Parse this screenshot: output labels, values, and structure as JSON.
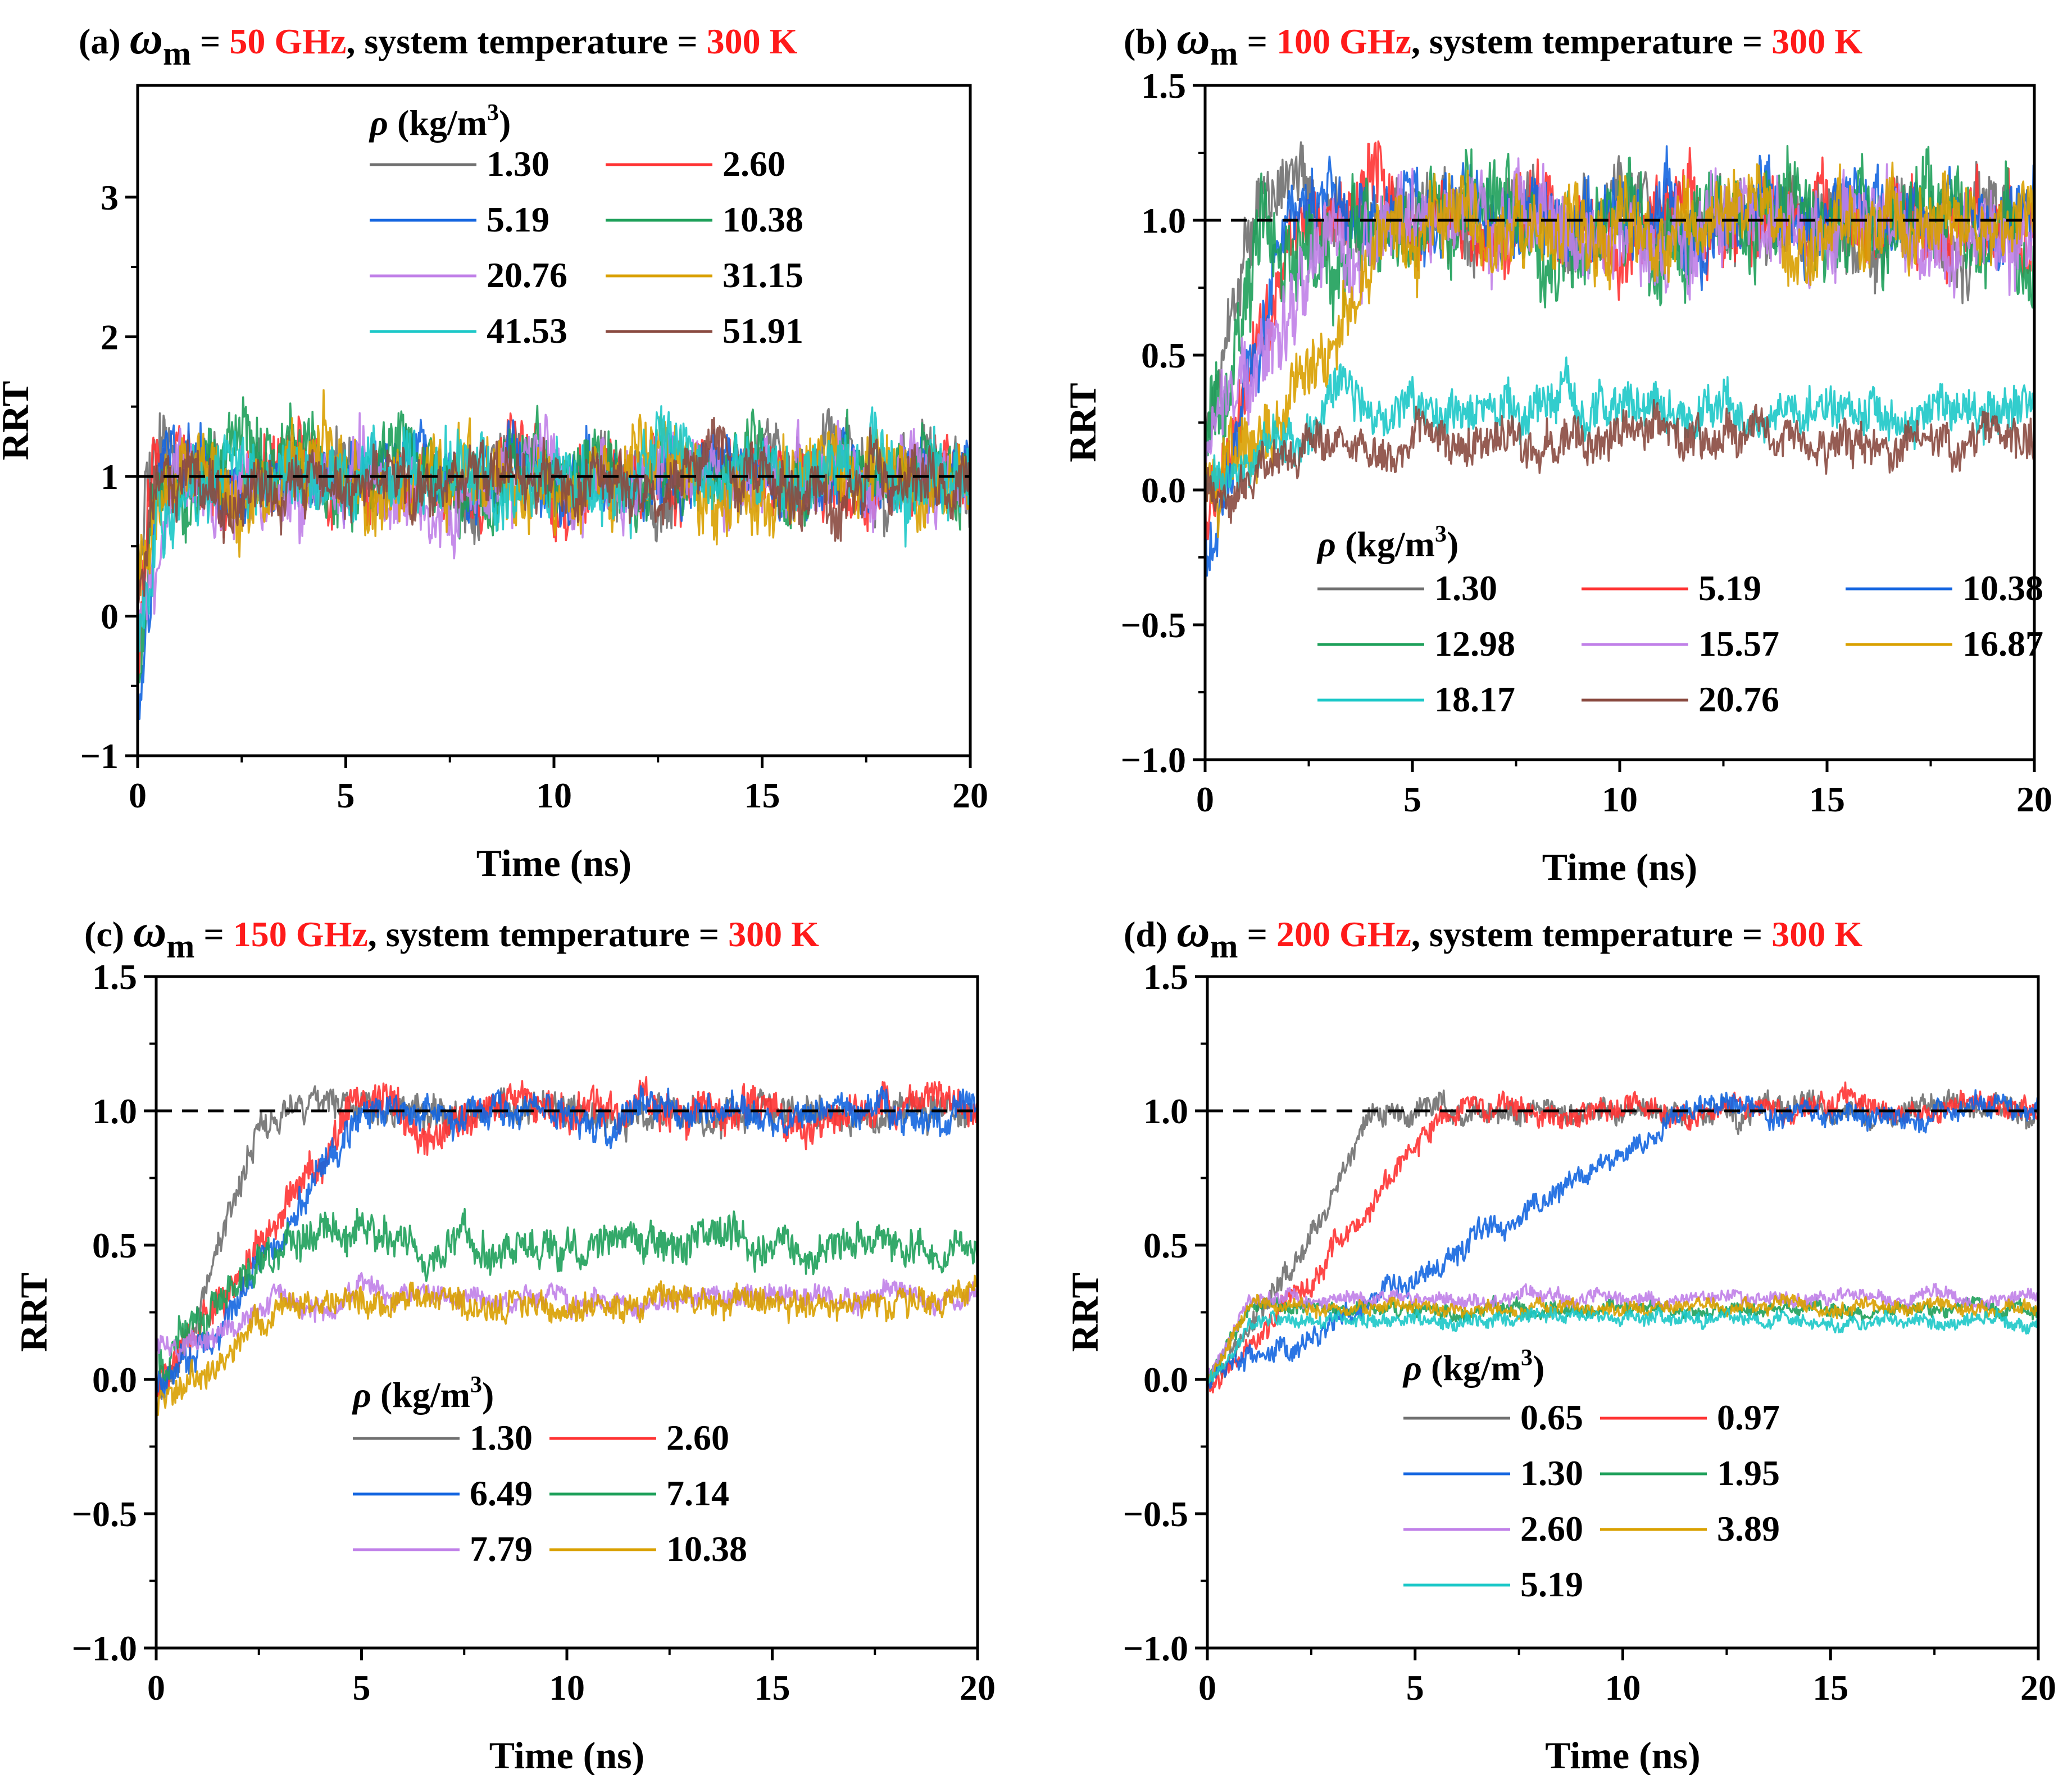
{
  "chart_data": [
    {
      "panel": "a",
      "type": "line",
      "title": {
        "prefix": "(a) ",
        "symbol": "ω",
        "sub": "m",
        "eq": " = ",
        "freq": "50 GHz",
        "mid": ", system temperature = ",
        "temp": "300 K"
      },
      "xlabel": "Time (ns)",
      "ylabel": "RRT",
      "xlim": [
        0,
        20
      ],
      "ylim": [
        -1,
        3.8
      ],
      "xticks": [
        0,
        5,
        10,
        15,
        20
      ],
      "xtick_labels": [
        "0",
        "5",
        "10",
        "15",
        "20"
      ],
      "yticks": [
        -1,
        0,
        1,
        2,
        3
      ],
      "ytick_labels": [
        "−1",
        "0",
        "1",
        "2",
        "3"
      ],
      "reference_line": 1.0,
      "legend": {
        "title_symbol": "ρ",
        "title_rest": " (kg/m",
        "title_sup": "3",
        "title_end": ")",
        "columns": 2,
        "placement": "top-center"
      },
      "series": [
        {
          "name": "1.30",
          "color": "#707070",
          "ramp_end": 0.25,
          "start": 0.2,
          "plateau": 1.0,
          "amp": 0.28
        },
        {
          "name": "2.60",
          "color": "#ff3333",
          "ramp_end": 0.3,
          "start": -0.4,
          "plateau": 1.0,
          "amp": 0.28
        },
        {
          "name": "5.19",
          "color": "#1466e0",
          "ramp_end": 0.6,
          "start": -0.7,
          "plateau": 1.0,
          "amp": 0.28
        },
        {
          "name": "10.38",
          "color": "#1ea05a",
          "ramp_end": 0.4,
          "start": -0.5,
          "plateau": 1.0,
          "amp": 0.3
        },
        {
          "name": "20.76",
          "color": "#c080e8",
          "ramp_end": 0.8,
          "start": -0.2,
          "plateau": 0.98,
          "amp": 0.3
        },
        {
          "name": "31.15",
          "color": "#d9a000",
          "ramp_end": 0.5,
          "start": 0.3,
          "plateau": 0.98,
          "amp": 0.32
        },
        {
          "name": "41.53",
          "color": "#1cc8c8",
          "ramp_end": 0.5,
          "start": -0.2,
          "plateau": 1.0,
          "amp": 0.3
        },
        {
          "name": "51.91",
          "color": "#8a4a40",
          "ramp_end": 0.4,
          "start": 0.2,
          "plateau": 0.95,
          "amp": 0.25
        }
      ]
    },
    {
      "panel": "b",
      "type": "line",
      "title": {
        "prefix": "(b) ",
        "symbol": "ω",
        "sub": "m",
        "eq": " = ",
        "freq": "100 GHz",
        "mid": ", system temperature = ",
        "temp": "300 K"
      },
      "xlabel": "Time (ns)",
      "ylabel": "RRT",
      "xlim": [
        0,
        20
      ],
      "ylim": [
        -1.0,
        1.5
      ],
      "xticks": [
        0,
        5,
        10,
        15,
        20
      ],
      "xtick_labels": [
        "0",
        "5",
        "10",
        "15",
        "20"
      ],
      "yticks": [
        -1.0,
        -0.5,
        0.0,
        0.5,
        1.0,
        1.5
      ],
      "ytick_labels": [
        "−1.0",
        "−0.5",
        "0.0",
        "0.5",
        "1.0",
        "1.5"
      ],
      "reference_line": 1.0,
      "legend": {
        "title_symbol": "ρ",
        "title_rest": " (kg/m",
        "title_sup": "3",
        "title_end": ")",
        "columns": 3,
        "placement": "bottom-left"
      },
      "series": [
        {
          "name": "1.30",
          "color": "#707070",
          "ramp_end": 1.2,
          "start": 0.2,
          "plateau": 1.0,
          "amp": 0.16
        },
        {
          "name": "5.19",
          "color": "#ff3333",
          "ramp_end": 2.2,
          "start": -0.1,
          "plateau": 1.0,
          "amp": 0.16
        },
        {
          "name": "10.38",
          "color": "#1466e0",
          "ramp_end": 2.0,
          "start": -0.25,
          "plateau": 1.0,
          "amp": 0.16
        },
        {
          "name": "12.98",
          "color": "#1ea05a",
          "ramp_end": 1.3,
          "start": 0.2,
          "plateau": 0.95,
          "amp": 0.2
        },
        {
          "name": "15.57",
          "color": "#c080e8",
          "ramp_end": 3.0,
          "start": 0.2,
          "plateau": 0.95,
          "amp": 0.18
        },
        {
          "name": "16.87",
          "color": "#d9a000",
          "ramp_end": 4.6,
          "start": -0.05,
          "plateau": 1.0,
          "amp": 0.16
        },
        {
          "name": "18.17",
          "color": "#1cc8c8",
          "ramp_end": 3.0,
          "start": 0.0,
          "plateau": 0.3,
          "amp": 0.1
        },
        {
          "name": "20.76",
          "color": "#8a4a40",
          "ramp_end": 3.0,
          "start": 0.0,
          "plateau": 0.18,
          "amp": 0.09
        }
      ]
    },
    {
      "panel": "c",
      "type": "line",
      "title": {
        "prefix": "(c) ",
        "symbol": "ω",
        "sub": "m",
        "eq": " = ",
        "freq": "150 GHz",
        "mid": ", system temperature = ",
        "temp": "300 K"
      },
      "xlabel": "Time (ns)",
      "ylabel": "RRT",
      "xlim": [
        0,
        20
      ],
      "ylim": [
        -1.0,
        1.5
      ],
      "xticks": [
        0,
        5,
        10,
        15,
        20
      ],
      "xtick_labels": [
        "0",
        "5",
        "10",
        "15",
        "20"
      ],
      "yticks": [
        -1.0,
        -0.5,
        0.0,
        0.5,
        1.0,
        1.5
      ],
      "ytick_labels": [
        "−1.0",
        "−0.5",
        "0.0",
        "0.5",
        "1.0",
        "1.5"
      ],
      "reference_line": 1.0,
      "legend": {
        "title_symbol": "ρ",
        "title_rest": " (kg/m",
        "title_sup": "3",
        "title_end": ")",
        "columns": 2,
        "placement": "bottom-left"
      },
      "series": [
        {
          "name": "1.30",
          "color": "#707070",
          "ramp_end": 2.6,
          "start": -0.1,
          "plateau": 1.0,
          "amp": 0.07
        },
        {
          "name": "2.60",
          "color": "#ff3333",
          "ramp_end": 4.8,
          "start": 0.0,
          "plateau": 1.0,
          "amp": 0.08
        },
        {
          "name": "6.49",
          "color": "#1466e0",
          "ramp_end": 5.0,
          "start": 0.0,
          "plateau": 1.0,
          "amp": 0.07
        },
        {
          "name": "7.14",
          "color": "#1ea05a",
          "ramp_end": 3.0,
          "start": 0.1,
          "plateau": 0.5,
          "amp": 0.08
        },
        {
          "name": "7.79",
          "color": "#c080e8",
          "ramp_end": 3.0,
          "start": 0.1,
          "plateau": 0.3,
          "amp": 0.05
        },
        {
          "name": "10.38",
          "color": "#d9a000",
          "ramp_end": 3.0,
          "start": -0.1,
          "plateau": 0.28,
          "amp": 0.06
        }
      ]
    },
    {
      "panel": "d",
      "type": "line",
      "title": {
        "prefix": "(d) ",
        "symbol": "ω",
        "sub": "m",
        "eq": " = ",
        "freq": "200 GHz",
        "mid": ", system temperature = ",
        "temp": "300 K"
      },
      "xlabel": "Time (ns)",
      "ylabel": "RRT",
      "xlim": [
        0,
        20
      ],
      "ylim": [
        -1.0,
        1.5
      ],
      "xticks": [
        0,
        5,
        10,
        15,
        20
      ],
      "xtick_labels": [
        "0",
        "5",
        "10",
        "15",
        "20"
      ],
      "yticks": [
        -1.0,
        -0.5,
        0.0,
        0.5,
        1.0,
        1.5
      ],
      "ytick_labels": [
        "−1.0",
        "−0.5",
        "0.0",
        "0.5",
        "1.0",
        "1.5"
      ],
      "reference_line": 1.0,
      "legend": {
        "title_symbol": "ρ",
        "title_rest": " (kg/m",
        "title_sup": "3",
        "title_end": ")",
        "columns": 2,
        "placement": "bottom-left"
      },
      "series": [
        {
          "name": "0.65",
          "color": "#707070",
          "ramp_end": 4.0,
          "start": 0.0,
          "plateau": 1.0,
          "amp": 0.05
        },
        {
          "name": "0.97",
          "color": "#ff3333",
          "ramp_end": 5.6,
          "start": 0.0,
          "plateau": 1.0,
          "amp": 0.05
        },
        {
          "name": "1.30",
          "color": "#1466e0",
          "ramp_end": 11.5,
          "start": 0.0,
          "plateau": 1.0,
          "amp": 0.05
        },
        {
          "name": "1.95",
          "color": "#1ea05a",
          "ramp_end": 1.0,
          "start": 0.0,
          "plateau": 0.26,
          "amp": 0.03
        },
        {
          "name": "2.60",
          "color": "#c080e8",
          "ramp_end": 1.0,
          "start": 0.0,
          "plateau": 0.3,
          "amp": 0.03
        },
        {
          "name": "3.89",
          "color": "#d9a000",
          "ramp_end": 1.0,
          "start": 0.0,
          "plateau": 0.27,
          "amp": 0.03
        },
        {
          "name": "5.19",
          "color": "#1cc8c8",
          "ramp_end": 1.0,
          "start": 0.0,
          "plateau": 0.22,
          "amp": 0.03
        }
      ]
    }
  ],
  "colors": {
    "title_highlight": "#ff1a1a",
    "reference_line": "#000000",
    "axis": "#000000"
  }
}
